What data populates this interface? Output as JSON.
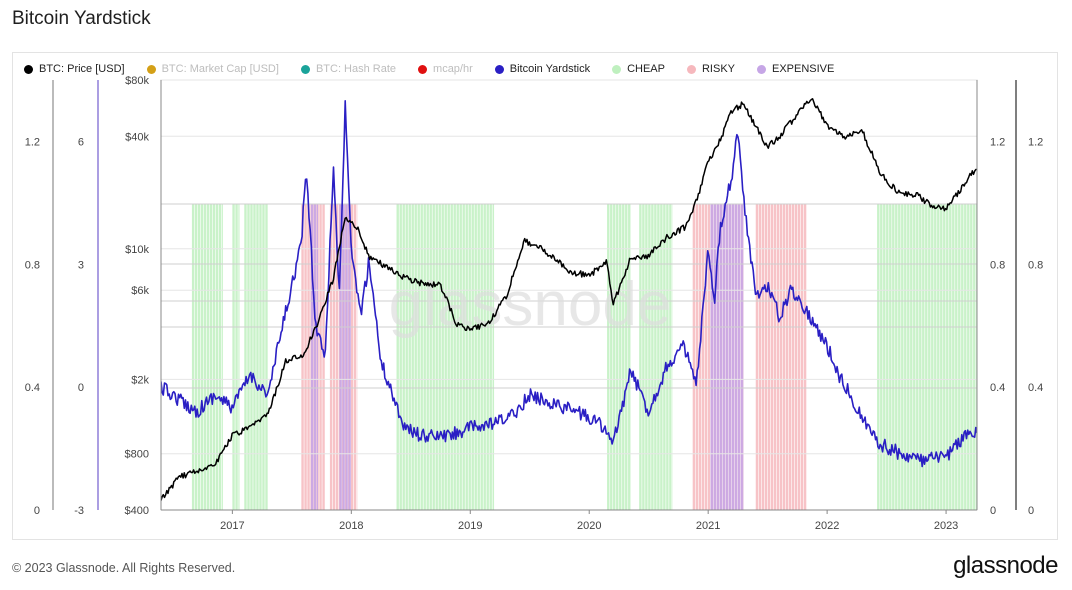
{
  "page": {
    "title": "Bitcoin Yardstick",
    "footer": "© 2023 Glassnode. All Rights Reserved.",
    "brand": "glassnode",
    "watermark": "glassnode"
  },
  "legend": [
    {
      "label": "BTC: Price [USD]",
      "color": "#000000",
      "active": true
    },
    {
      "label": "BTC: Market Cap [USD]",
      "color": "#d4a017",
      "active": false
    },
    {
      "label": "BTC: Hash Rate",
      "color": "#1aa39a",
      "active": false
    },
    {
      "label": "mcap/hr",
      "color": "#e01010",
      "active": false
    },
    {
      "label": "Bitcoin Yardstick",
      "color": "#2a1fc4",
      "active": true
    },
    {
      "label": "CHEAP",
      "color": "#bff0bf",
      "active": true
    },
    {
      "label": "RISKY",
      "color": "#f6b8bd",
      "active": true
    },
    {
      "label": "EXPENSIVE",
      "color": "#c6a6e6",
      "active": true
    }
  ],
  "chart_data": {
    "type": "line",
    "title": "Bitcoin Yardstick",
    "x_axis": {
      "ticks": [
        "2017",
        "2018",
        "2019",
        "2020",
        "2021",
        "2022",
        "2023"
      ],
      "range": [
        2016.4,
        2023.26
      ]
    },
    "price_axis": {
      "scale": "log",
      "ticks": [
        "$400",
        "$800",
        "$2k",
        "$6k",
        "$10k",
        "$40k",
        "$80k"
      ],
      "values": [
        400,
        800,
        2000,
        6000,
        10000,
        40000,
        80000
      ],
      "range": [
        400,
        80000
      ]
    },
    "yardstick_axis": {
      "ticks": [
        "-3",
        "0",
        "3",
        "6"
      ],
      "values": [
        -3,
        0,
        3,
        6
      ],
      "range": [
        -3,
        7.5
      ]
    },
    "outer_left_axis": {
      "ticks": [
        "0",
        "0.4",
        "0.8",
        "1.2"
      ],
      "values": [
        0,
        0.4,
        0.8,
        1.2
      ],
      "range": [
        0,
        1.4
      ]
    },
    "right_axis_1": {
      "ticks": [
        "0",
        "0.4",
        "0.8",
        "1.2"
      ],
      "values": [
        0,
        0.4,
        0.8,
        1.2
      ],
      "range": [
        0,
        1.4
      ]
    },
    "right_axis_2": {
      "ticks": [
        "0",
        "0.4",
        "0.8",
        "1.2"
      ],
      "values": [
        0,
        0.4,
        0.8,
        1.2
      ],
      "range": [
        0,
        1.4
      ]
    },
    "series": [
      {
        "name": "BTC: Price [USD]",
        "color": "#000000",
        "x": [
          2016.4,
          2016.55,
          2016.7,
          2016.85,
          2017.0,
          2017.15,
          2017.3,
          2017.45,
          2017.6,
          2017.75,
          2017.85,
          2017.95,
          2018.05,
          2018.15,
          2018.3,
          2018.45,
          2018.6,
          2018.75,
          2018.88,
          2019.0,
          2019.15,
          2019.3,
          2019.45,
          2019.55,
          2019.7,
          2019.85,
          2020.0,
          2020.15,
          2020.2,
          2020.35,
          2020.5,
          2020.65,
          2020.8,
          2020.9,
          2021.0,
          2021.1,
          2021.2,
          2021.3,
          2021.4,
          2021.5,
          2021.6,
          2021.7,
          2021.8,
          2021.87,
          2022.0,
          2022.15,
          2022.3,
          2022.45,
          2022.6,
          2022.75,
          2022.88,
          2023.0,
          2023.15,
          2023.26
        ],
        "values": [
          450,
          600,
          650,
          700,
          1000,
          1100,
          1300,
          2500,
          2700,
          4500,
          7000,
          15000,
          13000,
          9000,
          8000,
          7000,
          6500,
          6400,
          4000,
          3700,
          4000,
          5500,
          11000,
          10500,
          9000,
          7500,
          7200,
          8500,
          5000,
          9000,
          9200,
          11500,
          13000,
          18000,
          29000,
          38000,
          55000,
          60000,
          45000,
          35000,
          40000,
          48000,
          58000,
          65000,
          45000,
          40000,
          42000,
          25000,
          20000,
          19500,
          17000,
          16500,
          22000,
          27500
        ]
      },
      {
        "name": "Bitcoin Yardstick",
        "color": "#2a1fc4",
        "x": [
          2016.4,
          2016.55,
          2016.7,
          2016.85,
          2017.0,
          2017.15,
          2017.3,
          2017.4,
          2017.5,
          2017.58,
          2017.62,
          2017.7,
          2017.78,
          2017.85,
          2017.9,
          2017.95,
          2018.0,
          2018.08,
          2018.15,
          2018.25,
          2018.35,
          2018.45,
          2018.6,
          2018.8,
          2019.0,
          2019.2,
          2019.35,
          2019.5,
          2019.7,
          2019.9,
          2020.1,
          2020.2,
          2020.35,
          2020.5,
          2020.65,
          2020.8,
          2020.9,
          2021.0,
          2021.05,
          2021.1,
          2021.2,
          2021.25,
          2021.3,
          2021.35,
          2021.4,
          2021.5,
          2021.6,
          2021.7,
          2021.8,
          2021.9,
          2022.0,
          2022.1,
          2022.2,
          2022.3,
          2022.45,
          2022.6,
          2022.8,
          2023.0,
          2023.15,
          2023.26
        ],
        "values": [
          0,
          -0.3,
          -0.6,
          -0.2,
          -0.5,
          0.3,
          -0.2,
          1.2,
          2.5,
          3.5,
          5.4,
          1.5,
          0.8,
          5.4,
          2.2,
          7.0,
          3.2,
          1.8,
          3.1,
          0.6,
          -0.2,
          -1.0,
          -1.2,
          -1.2,
          -1.0,
          -0.9,
          -0.7,
          -0.2,
          -0.4,
          -0.6,
          -0.9,
          -1.4,
          0.4,
          -0.6,
          0.5,
          1.0,
          0.0,
          3.3,
          2.0,
          3.9,
          5.2,
          6.3,
          4.5,
          3.4,
          2.2,
          2.5,
          1.7,
          2.4,
          2.0,
          1.5,
          1.0,
          0.3,
          -0.2,
          -0.8,
          -1.4,
          -1.6,
          -1.8,
          -1.7,
          -1.2,
          -1.1
        ]
      }
    ],
    "zones": {
      "CHEAP": [
        [
          2016.66,
          2016.92
        ],
        [
          2017.0,
          2017.06
        ],
        [
          2017.1,
          2017.3
        ],
        [
          2018.38,
          2019.2
        ],
        [
          2020.15,
          2020.35
        ],
        [
          2020.42,
          2020.7
        ],
        [
          2022.42,
          2023.26
        ]
      ],
      "RISKY": [
        [
          2017.58,
          2017.78
        ],
        [
          2017.82,
          2018.05
        ],
        [
          2020.87,
          2021.3
        ],
        [
          2021.4,
          2021.83
        ]
      ],
      "EXPENSIVE": [
        [
          2017.66,
          2017.72
        ],
        [
          2017.9,
          2018.0
        ],
        [
          2021.02,
          2021.3
        ]
      ]
    },
    "grid": true,
    "legend_position": "top-left"
  }
}
